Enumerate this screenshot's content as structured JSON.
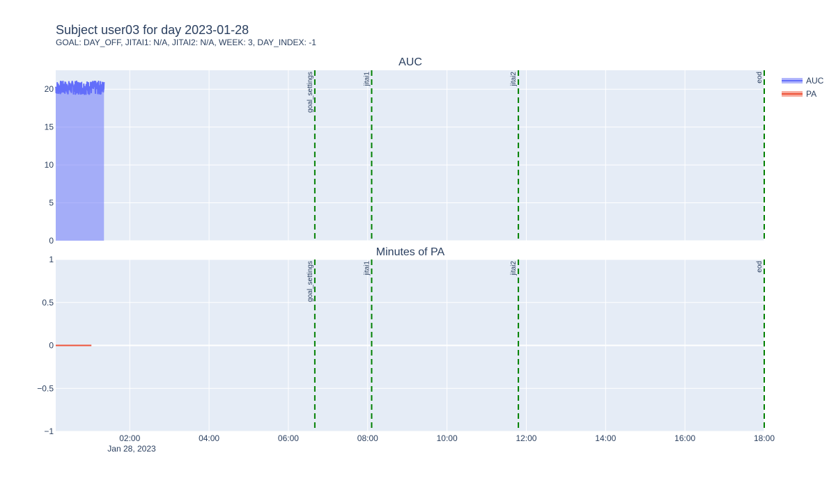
{
  "header": {
    "title": "Subject user03 for day 2023-01-28",
    "subtitle": "GOAL: DAY_OFF, JITAI1: N/A, JITAI2: N/A, WEEK: 3, DAY_INDEX: -1"
  },
  "colors": {
    "auc": "#636efa",
    "pa": "#ef553b",
    "event_line": "#008000",
    "plot_bg": "#e5ecf6",
    "grid": "#ffffff",
    "text": "#2a3f5f"
  },
  "chart_data": {
    "type": "area",
    "x_axis": {
      "type": "time",
      "range": [
        "00:08",
        "18:00"
      ],
      "ticks": [
        "02:00",
        "04:00",
        "06:00",
        "08:00",
        "10:00",
        "12:00",
        "14:00",
        "16:00",
        "18:00"
      ],
      "date_label": "Jan 28, 2023"
    },
    "events": [
      {
        "name": "goal_settings",
        "time": "06:40"
      },
      {
        "name": "jitai1",
        "time": "08:06"
      },
      {
        "name": "jitai2",
        "time": "11:48"
      },
      {
        "name": "eod",
        "time": "18:00"
      }
    ],
    "legend": {
      "placement": "top-right",
      "entries": [
        "AUC",
        "PA"
      ]
    },
    "subplots": [
      {
        "title": "AUC",
        "type": "area",
        "ylim": [
          0,
          22.5
        ],
        "yticks": [
          0,
          5,
          10,
          15,
          20
        ],
        "series": [
          {
            "name": "AUC",
            "x_range": [
              "00:08",
              "01:21"
            ],
            "approx_level": 20.2,
            "min": 19.2,
            "max": 21.3,
            "noise": "high-frequency fluctuation around 20"
          }
        ]
      },
      {
        "title": "Minutes of PA",
        "type": "line",
        "ylim": [
          -1,
          1
        ],
        "yticks": [
          -1,
          -0.5,
          0,
          0.5,
          1
        ],
        "ytick_labels": [
          "−1",
          "−0.5",
          "0",
          "0.5",
          "1"
        ],
        "series": [
          {
            "name": "PA",
            "x": [
              "00:08",
              "01:02"
            ],
            "y": [
              0,
              0
            ]
          }
        ]
      }
    ]
  }
}
